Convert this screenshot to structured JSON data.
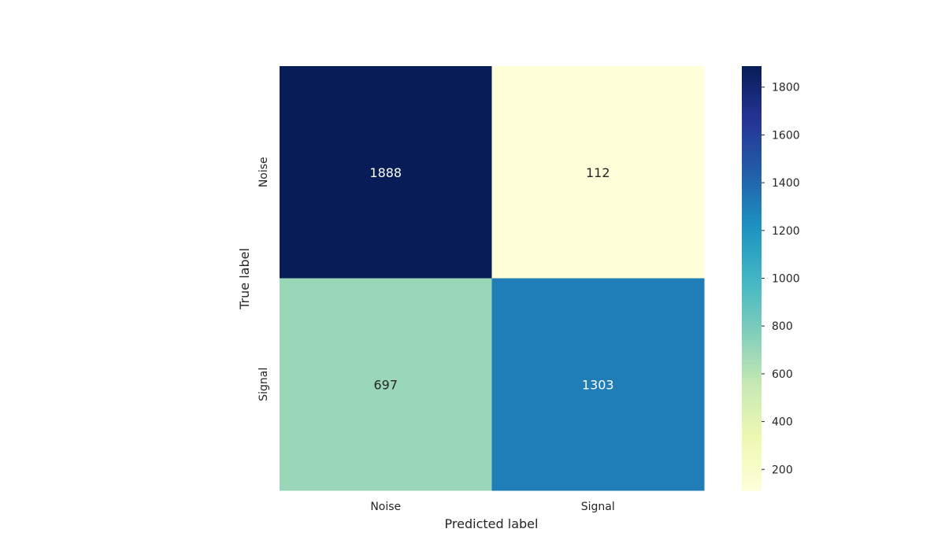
{
  "chart_data": {
    "type": "heatmap",
    "title": "",
    "xlabel": "Predicted label",
    "ylabel": "True label",
    "x_categories": [
      "Noise",
      "Signal"
    ],
    "y_categories": [
      "Noise",
      "Signal"
    ],
    "values": [
      [
        1888,
        112
      ],
      [
        697,
        1303
      ]
    ],
    "colormap": "YlGnBu",
    "colorbar": {
      "min": 112,
      "max": 1888,
      "ticks": [
        200,
        400,
        600,
        800,
        1000,
        1200,
        1400,
        1600,
        1800
      ]
    },
    "grid": false,
    "colors": {
      "low": "#ffffd9",
      "high": "#081d58",
      "text_dark": "#262626",
      "text_light": "#ffffff"
    }
  }
}
